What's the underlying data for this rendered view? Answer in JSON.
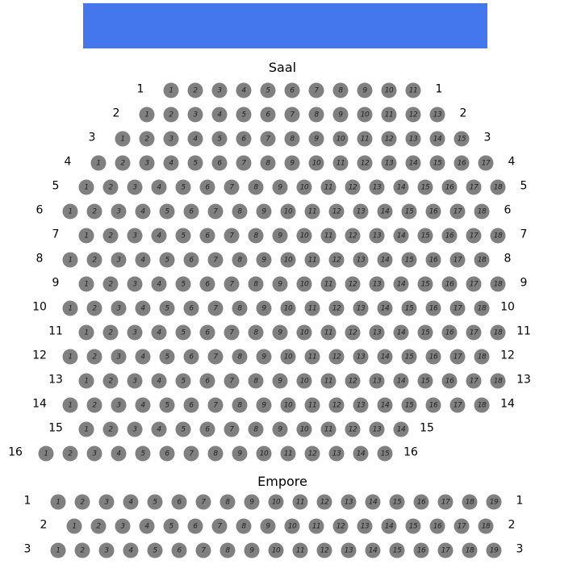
{
  "banner": {
    "color": "#4477ee"
  },
  "seat_color": "#808080",
  "sections": [
    {
      "title": "Saal",
      "rows": [
        {
          "label": "1",
          "seats": 11
        },
        {
          "label": "2",
          "seats": 13
        },
        {
          "label": "3",
          "seats": 15
        },
        {
          "label": "4",
          "seats": 17
        },
        {
          "label": "5",
          "seats": 18
        },
        {
          "label": "6",
          "seats": 18
        },
        {
          "label": "7",
          "seats": 18
        },
        {
          "label": "8",
          "seats": 18
        },
        {
          "label": "9",
          "seats": 18
        },
        {
          "label": "10",
          "seats": 18
        },
        {
          "label": "11",
          "seats": 18
        },
        {
          "label": "12",
          "seats": 18
        },
        {
          "label": "13",
          "seats": 18
        },
        {
          "label": "14",
          "seats": 18
        },
        {
          "label": "15",
          "seats": 14
        },
        {
          "label": "16",
          "seats": 15
        }
      ]
    },
    {
      "title": "Empore",
      "rows": [
        {
          "label": "1",
          "seats": 19
        },
        {
          "label": "2",
          "seats": 18
        },
        {
          "label": "3",
          "seats": 19
        }
      ]
    }
  ]
}
